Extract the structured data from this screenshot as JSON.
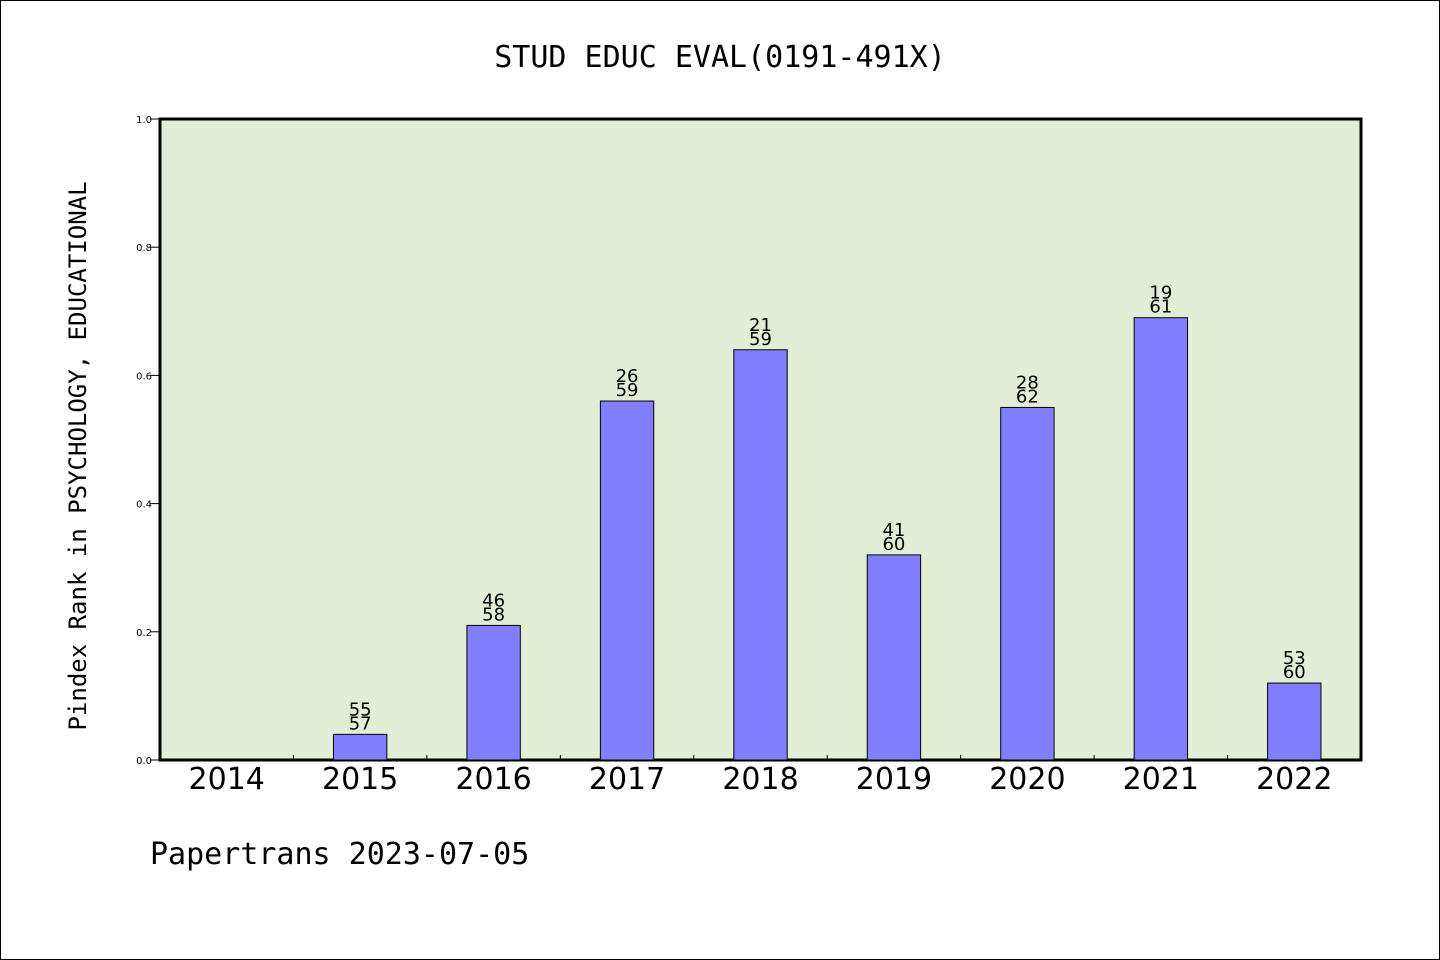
{
  "chart_data": {
    "type": "bar",
    "title": "STUD EDUC EVAL(0191-491X)",
    "xlabel": "",
    "ylabel": "Pindex Rank in PSYCHOLOGY, EDUCATIONAL",
    "ylim": [
      0,
      1.0
    ],
    "yticks": [
      "0.0",
      "0.2",
      "0.4",
      "0.6",
      "0.8",
      "1.0"
    ],
    "grid": false,
    "categories": [
      "2014",
      "2015",
      "2016",
      "2017",
      "2018",
      "2019",
      "2020",
      "2021",
      "2022"
    ],
    "values": [
      null,
      0.04,
      0.21,
      0.56,
      0.64,
      0.32,
      0.55,
      0.69,
      0.12
    ],
    "rank_labels": [
      "",
      "55",
      "46",
      "26",
      "21",
      "41",
      "28",
      "19",
      "53"
    ],
    "total_labels": [
      "",
      "57",
      "58",
      "59",
      "59",
      "60",
      "62",
      "61",
      "60"
    ],
    "colors": {
      "plot_bg": "#e2efd6",
      "bar": "#8080ff",
      "bar_edge": "#000000"
    },
    "footer": "Papertrans 2023-07-05"
  }
}
